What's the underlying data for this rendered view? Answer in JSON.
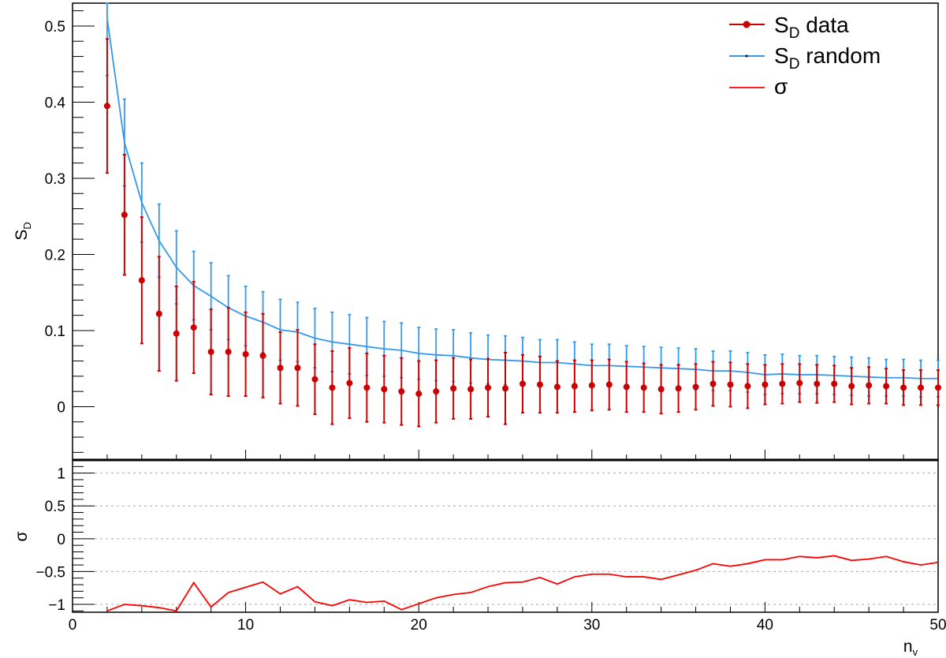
{
  "chart_data": [
    {
      "type": "scatter",
      "xlabel": "n",
      "xlabel_sub": "v",
      "ylabel": "S",
      "ylabel_sub": "D",
      "xlim": [
        0,
        50
      ],
      "ylim": [
        -0.07,
        0.53
      ],
      "yticks": [
        0,
        0.1,
        0.2,
        0.3,
        0.4,
        0.5
      ],
      "y_tick_labels": [
        "0",
        "0.1",
        "0.2",
        "0.3",
        "0.4",
        "0.5"
      ],
      "legend_position": "top-right",
      "series": [
        {
          "name": "S",
          "name_sub": "D",
          "name_suffix": " data",
          "style": "points-with-error-bars",
          "color": "#cc0000",
          "x": [
            2,
            3,
            4,
            5,
            6,
            7,
            8,
            9,
            10,
            11,
            12,
            13,
            14,
            15,
            16,
            17,
            18,
            19,
            20,
            21,
            22,
            23,
            24,
            25,
            26,
            27,
            28,
            29,
            30,
            31,
            32,
            33,
            34,
            35,
            36,
            37,
            38,
            39,
            40,
            41,
            42,
            43,
            44,
            45,
            46,
            47,
            48,
            49,
            50
          ],
          "y": [
            0.395,
            0.252,
            0.166,
            0.122,
            0.096,
            0.104,
            0.072,
            0.072,
            0.069,
            0.067,
            0.051,
            0.051,
            0.036,
            0.025,
            0.031,
            0.025,
            0.023,
            0.02,
            0.017,
            0.02,
            0.024,
            0.023,
            0.025,
            0.024,
            0.03,
            0.029,
            0.026,
            0.027,
            0.028,
            0.029,
            0.026,
            0.025,
            0.023,
            0.024,
            0.026,
            0.03,
            0.029,
            0.027,
            0.029,
            0.03,
            0.031,
            0.03,
            0.03,
            0.027,
            0.028,
            0.027,
            0.025,
            0.025,
            0.025
          ],
          "yerr": [
            0.088,
            0.079,
            0.083,
            0.075,
            0.062,
            0.06,
            0.056,
            0.058,
            0.055,
            0.055,
            0.047,
            0.05,
            0.046,
            0.048,
            0.046,
            0.045,
            0.044,
            0.044,
            0.043,
            0.041,
            0.04,
            0.039,
            0.038,
            0.047,
            0.038,
            0.037,
            0.034,
            0.034,
            0.033,
            0.033,
            0.033,
            0.032,
            0.032,
            0.031,
            0.03,
            0.029,
            0.029,
            0.029,
            0.026,
            0.026,
            0.025,
            0.025,
            0.024,
            0.024,
            0.024,
            0.023,
            0.023,
            0.023,
            0.023
          ]
        },
        {
          "name": "S",
          "name_sub": "D",
          "name_suffix": " random",
          "style": "line-with-error-bars",
          "color": "#3399ee",
          "x": [
            2,
            3,
            4,
            5,
            6,
            7,
            8,
            9,
            10,
            11,
            12,
            13,
            14,
            15,
            16,
            17,
            18,
            19,
            20,
            21,
            22,
            23,
            24,
            25,
            26,
            27,
            28,
            29,
            30,
            31,
            32,
            33,
            34,
            35,
            36,
            37,
            38,
            39,
            40,
            41,
            42,
            43,
            44,
            45,
            46,
            47,
            48,
            49,
            50
          ],
          "y": [
            0.51,
            0.347,
            0.268,
            0.218,
            0.183,
            0.159,
            0.145,
            0.13,
            0.119,
            0.111,
            0.101,
            0.098,
            0.09,
            0.085,
            0.082,
            0.079,
            0.076,
            0.074,
            0.07,
            0.068,
            0.067,
            0.064,
            0.062,
            0.061,
            0.06,
            0.058,
            0.058,
            0.056,
            0.054,
            0.054,
            0.053,
            0.052,
            0.051,
            0.05,
            0.049,
            0.047,
            0.047,
            0.045,
            0.042,
            0.043,
            0.042,
            0.042,
            0.041,
            0.04,
            0.039,
            0.038,
            0.038,
            0.037,
            0.037
          ],
          "yerr": [
            0.075,
            0.057,
            0.052,
            0.048,
            0.048,
            0.045,
            0.044,
            0.042,
            0.039,
            0.04,
            0.04,
            0.039,
            0.039,
            0.039,
            0.039,
            0.038,
            0.036,
            0.036,
            0.034,
            0.034,
            0.034,
            0.033,
            0.032,
            0.032,
            0.031,
            0.03,
            0.03,
            0.029,
            0.028,
            0.028,
            0.027,
            0.027,
            0.027,
            0.027,
            0.027,
            0.026,
            0.026,
            0.026,
            0.026,
            0.026,
            0.025,
            0.025,
            0.025,
            0.025,
            0.025,
            0.024,
            0.024,
            0.024,
            0.024
          ]
        }
      ],
      "legend_extra": {
        "name": "σ",
        "color": "#ff0000",
        "style": "line"
      }
    },
    {
      "type": "line",
      "xlabel": "n",
      "xlabel_sub": "v",
      "ylabel": "σ",
      "xlim": [
        0,
        50
      ],
      "ylim": [
        -1.12,
        1.2
      ],
      "xticks": [
        0,
        10,
        20,
        30,
        40,
        50
      ],
      "x_tick_labels": [
        "0",
        "10",
        "20",
        "30",
        "40",
        "50"
      ],
      "yticks": [
        -1,
        -0.5,
        0,
        0.5,
        1
      ],
      "y_tick_labels": [
        "−1",
        "−0.5",
        "0",
        "0.5",
        "1"
      ],
      "grid": "horizontal-dotted",
      "series": [
        {
          "name": "σ",
          "color": "#ff0000",
          "x": [
            2,
            3,
            4,
            5,
            6,
            7,
            8,
            9,
            10,
            11,
            12,
            13,
            14,
            15,
            16,
            17,
            18,
            19,
            20,
            21,
            22,
            23,
            24,
            25,
            26,
            27,
            28,
            29,
            30,
            31,
            32,
            33,
            34,
            35,
            36,
            37,
            38,
            39,
            40,
            41,
            42,
            43,
            44,
            45,
            46,
            47,
            48,
            49,
            50
          ],
          "y": [
            -1.1,
            -1.0,
            -1.02,
            -1.05,
            -1.1,
            -0.67,
            -1.04,
            -0.82,
            -0.74,
            -0.66,
            -0.84,
            -0.73,
            -0.96,
            -1.02,
            -0.93,
            -0.97,
            -0.95,
            -1.08,
            -0.99,
            -0.9,
            -0.85,
            -0.82,
            -0.73,
            -0.67,
            -0.66,
            -0.59,
            -0.69,
            -0.58,
            -0.54,
            -0.54,
            -0.58,
            -0.58,
            -0.62,
            -0.55,
            -0.48,
            -0.38,
            -0.42,
            -0.38,
            -0.32,
            -0.32,
            -0.27,
            -0.29,
            -0.26,
            -0.33,
            -0.31,
            -0.27,
            -0.35,
            -0.4,
            -0.36
          ]
        }
      ]
    }
  ]
}
